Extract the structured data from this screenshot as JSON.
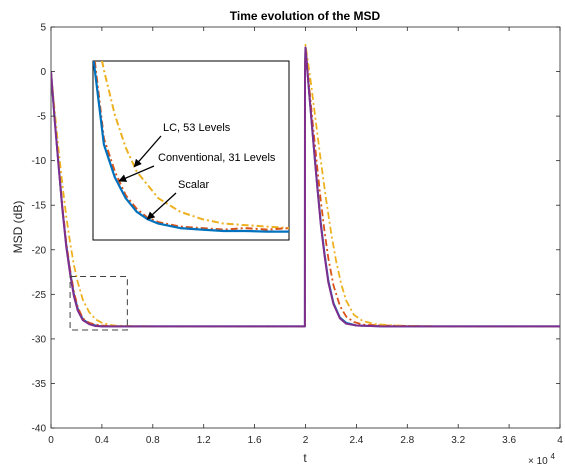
{
  "chart_data": {
    "type": "line",
    "title": "Time evolution of the MSD",
    "xlabel": "t",
    "ylabel": "MSD (dB)",
    "x_exponent_label": "× 10",
    "x_exponent_power": "4",
    "xlim": [
      0,
      40000
    ],
    "ylim": [
      -40,
      5
    ],
    "xticks": [
      0,
      4000,
      8000,
      12000,
      16000,
      20000,
      24000,
      28000,
      32000,
      36000,
      40000
    ],
    "xtick_labels": [
      "0",
      "0.4",
      "0.8",
      "1.2",
      "1.6",
      "2",
      "2.4",
      "2.8",
      "3.2",
      "3.6",
      "4"
    ],
    "yticks": [
      -40,
      -35,
      -30,
      -25,
      -20,
      -15,
      -10,
      -5,
      0,
      5
    ],
    "ytick_labels": [
      "-40",
      "-35",
      "-30",
      "-25",
      "-20",
      "-15",
      "-10",
      "-5",
      "0",
      "5"
    ],
    "grid": false,
    "series": [
      {
        "name": "Scalar",
        "color": "#0072BD",
        "style": "solid",
        "x": [
          0,
          300,
          600,
          900,
          1200,
          1500,
          1800,
          2100,
          2500,
          3000,
          3500,
          4000,
          5000,
          6000,
          8000,
          12000,
          16000,
          19950,
          19960,
          20000,
          20300,
          20600,
          20900,
          21200,
          21500,
          21800,
          22200,
          22700,
          23200,
          24000,
          26000,
          30000,
          35000,
          40000
        ],
        "y": [
          0,
          -5.5,
          -10.5,
          -15.5,
          -19.5,
          -22.5,
          -25,
          -26.6,
          -27.8,
          -28.3,
          -28.5,
          -28.6,
          -28.6,
          -28.6,
          -28.6,
          -28.6,
          -28.6,
          -28.6,
          0,
          2.7,
          -2.5,
          -7.5,
          -12.5,
          -17,
          -20.5,
          -23.5,
          -26,
          -27.6,
          -28.2,
          -28.5,
          -28.6,
          -28.6,
          -28.6,
          -28.6
        ]
      },
      {
        "name": "Conventional, 31 Levels",
        "color": "#D95319",
        "style": "dashdot",
        "x": [
          0,
          300,
          600,
          900,
          1200,
          1500,
          1800,
          2100,
          2500,
          3000,
          3500,
          4000,
          5000,
          6000,
          8000,
          12000,
          16000,
          19950,
          19960,
          20000,
          20300,
          20600,
          20900,
          21200,
          21500,
          21800,
          22200,
          22700,
          23200,
          23800,
          24500,
          26000,
          30000,
          35000,
          40000
        ],
        "y": [
          0,
          -5.3,
          -10.3,
          -15.2,
          -19.2,
          -22.2,
          -24.7,
          -26.4,
          -27.7,
          -28.2,
          -28.4,
          -28.5,
          -28.6,
          -28.6,
          -28.6,
          -28.6,
          -28.6,
          -28.6,
          0,
          2.7,
          -1.8,
          -6.2,
          -10.5,
          -14.5,
          -18,
          -21,
          -24,
          -26.3,
          -27.5,
          -28.1,
          -28.4,
          -28.5,
          -28.6,
          -28.6,
          -28.6
        ]
      },
      {
        "name": "LC, 53 Levels",
        "color": "#EDB120",
        "style": "dashdot",
        "x": [
          0,
          300,
          600,
          900,
          1200,
          1500,
          1800,
          2100,
          2500,
          3000,
          3500,
          4000,
          4500,
          5000,
          6000,
          8000,
          12000,
          16000,
          19950,
          19960,
          20000,
          20400,
          20800,
          21200,
          21600,
          22000,
          22400,
          22800,
          23200,
          23800,
          24500,
          25500,
          27000,
          30000,
          35000,
          40000
        ],
        "y": [
          0,
          -4.5,
          -8.8,
          -12.8,
          -16.3,
          -19.2,
          -21.7,
          -23.6,
          -25.6,
          -27,
          -27.8,
          -28.2,
          -28.4,
          -28.5,
          -28.55,
          -28.6,
          -28.6,
          -28.6,
          -28.6,
          0,
          3,
          -1,
          -5.5,
          -10,
          -14.2,
          -18,
          -21.2,
          -23.8,
          -25.7,
          -27.3,
          -28,
          -28.35,
          -28.5,
          -28.6,
          -28.6,
          -28.6
        ]
      },
      {
        "name": "",
        "color": "#7E2F8E",
        "style": "solid",
        "x": [
          0,
          300,
          600,
          900,
          1200,
          1500,
          1800,
          2100,
          2500,
          3000,
          3500,
          4000,
          5000,
          8000,
          12000,
          16000,
          19950,
          19960,
          20000,
          20300,
          20600,
          20900,
          21200,
          21500,
          21800,
          22200,
          22700,
          23200,
          24000,
          26000,
          30000,
          35000,
          40000
        ],
        "y": [
          0,
          -5.6,
          -10.6,
          -15.6,
          -19.7,
          -22.7,
          -25.2,
          -26.8,
          -27.9,
          -28.35,
          -28.55,
          -28.6,
          -28.6,
          -28.6,
          -28.6,
          -28.6,
          -28.6,
          0,
          2.7,
          -2.6,
          -7.6,
          -12.6,
          -17.2,
          -20.7,
          -23.7,
          -26.1,
          -27.7,
          -28.3,
          -28.5,
          -28.6,
          -28.6,
          -28.6,
          -28.6
        ]
      }
    ],
    "zoom_box": {
      "xlim": [
        1500,
        6000
      ],
      "ylim": [
        -29,
        -23
      ]
    },
    "inset": {
      "series": [
        {
          "name": "LC, 53 Levels",
          "color": "#EDB120",
          "style": "dashdot",
          "x": [
            1500,
            1750,
            2000,
            2250,
            2500,
            3000,
            3500,
            4000,
            4500,
            5000,
            5500,
            6000
          ],
          "y": [
            -21.5,
            -23.3,
            -24.8,
            -25.9,
            -26.7,
            -27.6,
            -28.05,
            -28.3,
            -28.45,
            -28.5,
            -28.55,
            -28.6
          ]
        },
        {
          "name": "Conventional, 31 Levels",
          "color": "#D95319",
          "style": "dashdot",
          "x": [
            1500,
            1750,
            2000,
            2250,
            2500,
            2750,
            3000,
            3500,
            4000,
            4500,
            5000,
            5500,
            6000
          ],
          "y": [
            -22.5,
            -25.6,
            -26.7,
            -27.5,
            -27.95,
            -28.25,
            -28.4,
            -28.55,
            -28.6,
            -28.65,
            -28.6,
            -28.65,
            -28.6
          ]
        },
        {
          "name": "Scalar",
          "color": "#0072BD",
          "style": "solid",
          "x": [
            1500,
            1750,
            2000,
            2250,
            2500,
            2750,
            3000,
            3500,
            4000,
            4500,
            5000,
            5500,
            6000
          ],
          "y": [
            -22.8,
            -25.8,
            -26.9,
            -27.6,
            -28.05,
            -28.3,
            -28.45,
            -28.6,
            -28.65,
            -28.7,
            -28.7,
            -28.72,
            -28.72
          ]
        }
      ]
    },
    "annotations": [
      {
        "text": "LC, 53 Levels",
        "target_series": "LC, 53 Levels",
        "target_x": 2450
      },
      {
        "text": "Conventional, 31 Levels",
        "target_series": "Conventional, 31 Levels",
        "target_x": 2100
      },
      {
        "text": "Scalar",
        "target_series": "Scalar",
        "target_x": 2750
      }
    ]
  }
}
